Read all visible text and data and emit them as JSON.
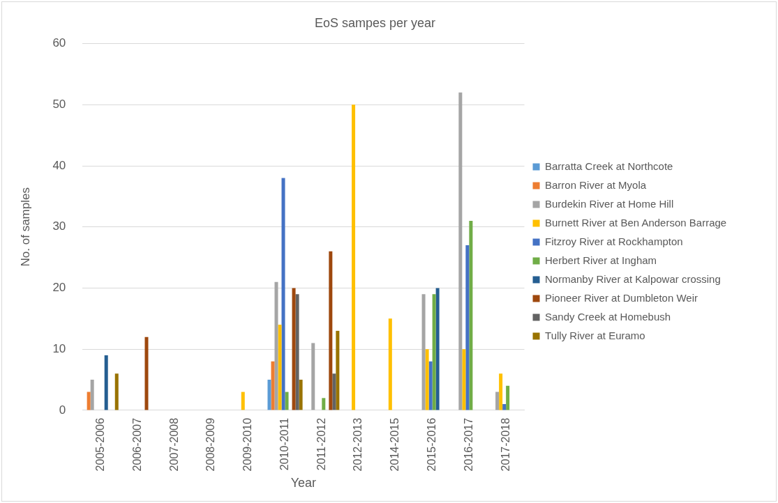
{
  "chart_data": {
    "type": "bar",
    "title": "EoS sampes per year",
    "xlabel": "Year",
    "ylabel": "No. of samples",
    "categories": [
      "2005-2006",
      "2006-2007",
      "2007-2008",
      "2008-2009",
      "2009-2010",
      "2010-2011",
      "2011-2012",
      "2012-2013",
      "2014-2015",
      "2015-2016",
      "2016-2017",
      "2017-2018"
    ],
    "ylim": [
      0,
      60
    ],
    "yticks": [
      0,
      10,
      20,
      30,
      40,
      50,
      60
    ],
    "grid": "y",
    "legend": "right",
    "series": [
      {
        "name": "Barratta Creek at Northcote",
        "color": "#5b9bd5",
        "values": [
          null,
          null,
          null,
          null,
          null,
          5,
          null,
          null,
          null,
          null,
          null,
          null
        ]
      },
      {
        "name": "Barron River at Myola",
        "color": "#ed7d31",
        "values": [
          3,
          null,
          null,
          null,
          null,
          8,
          null,
          null,
          null,
          null,
          null,
          null
        ]
      },
      {
        "name": "Burdekin River at Home Hill",
        "color": "#a5a5a5",
        "values": [
          5,
          null,
          null,
          null,
          null,
          21,
          11,
          null,
          null,
          19,
          52,
          3
        ]
      },
      {
        "name": "Burnett River at Ben Anderson Barrage",
        "color": "#ffc000",
        "values": [
          null,
          null,
          null,
          null,
          3,
          14,
          null,
          50,
          15,
          10,
          10,
          6
        ]
      },
      {
        "name": "Fitzroy River at Rockhampton",
        "color": "#4472c4",
        "values": [
          null,
          null,
          null,
          null,
          null,
          38,
          null,
          null,
          null,
          8,
          27,
          1
        ]
      },
      {
        "name": "Herbert River at Ingham",
        "color": "#70ad47",
        "values": [
          null,
          null,
          null,
          null,
          null,
          3,
          2,
          null,
          null,
          19,
          31,
          4
        ]
      },
      {
        "name": "Normanby River at Kalpowar crossing",
        "color": "#255e91",
        "values": [
          9,
          null,
          null,
          null,
          null,
          null,
          null,
          null,
          null,
          20,
          null,
          null
        ]
      },
      {
        "name": "Pioneer River at Dumbleton Weir",
        "color": "#9e480e",
        "values": [
          null,
          12,
          null,
          null,
          null,
          20,
          26,
          null,
          null,
          null,
          null,
          null
        ]
      },
      {
        "name": "Sandy Creek at Homebush",
        "color": "#636363",
        "values": [
          null,
          null,
          null,
          null,
          null,
          19,
          6,
          null,
          null,
          null,
          null,
          null
        ]
      },
      {
        "name": "Tully River at Euramo",
        "color": "#997300",
        "values": [
          6,
          null,
          null,
          null,
          null,
          5,
          13,
          null,
          null,
          null,
          null,
          null
        ]
      }
    ]
  }
}
